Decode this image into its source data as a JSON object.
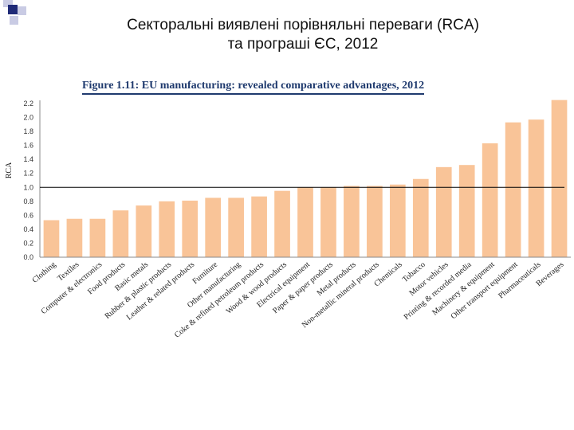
{
  "slide": {
    "title_line1": "Секторальні виявлені порівняльні переваги (RCA)",
    "title_line2": "та програші ЄС, 2012"
  },
  "figure": {
    "caption": "Figure 1.11: EU manufacturing: revealed comparative advantages, 2012"
  },
  "colors": {
    "bar": "#f9c498",
    "reference_line": "#000000",
    "axis": "#888888",
    "caption": "#1f3a6e",
    "corner_dark": "#1f2a78",
    "corner_light": "#c9cbe4"
  },
  "chart_data": {
    "type": "bar",
    "title": "Figure 1.11: EU manufacturing: revealed comparative advantages, 2012",
    "xlabel": "",
    "ylabel": "RCA",
    "ylim": [
      0,
      2.2
    ],
    "yticks": [
      "0.0",
      "0.2",
      "0.4",
      "0.6",
      "0.8",
      "1.0",
      "1.2",
      "1.4",
      "1.6",
      "1.8",
      "2.0",
      "2.2"
    ],
    "reference_line": 1.0,
    "grid": false,
    "categories": [
      "Clothing",
      "Textiles",
      "Computer & electronics",
      "Food products",
      "Basic metals",
      "Rubber & plastic products",
      "Leather & related products",
      "Furniture",
      "Other manufacturing",
      "Coke & refined petroleum products",
      "Wood & wood products",
      "Electrical equipment",
      "Paper & paper products",
      "Metal products",
      "Non-metallic mineral products",
      "Chemicals",
      "Tobacco",
      "Motor vehicles",
      "Printing & recorded media",
      "Machinery & equipment",
      "Other transport equipment",
      "Pharmaceuticals",
      "Beverages"
    ],
    "values": [
      0.53,
      0.55,
      0.55,
      0.67,
      0.74,
      0.8,
      0.81,
      0.85,
      0.85,
      0.87,
      0.95,
      1.0,
      1.0,
      1.02,
      1.02,
      1.04,
      1.12,
      1.29,
      1.32,
      1.63,
      1.93,
      1.97,
      2.25
    ]
  }
}
